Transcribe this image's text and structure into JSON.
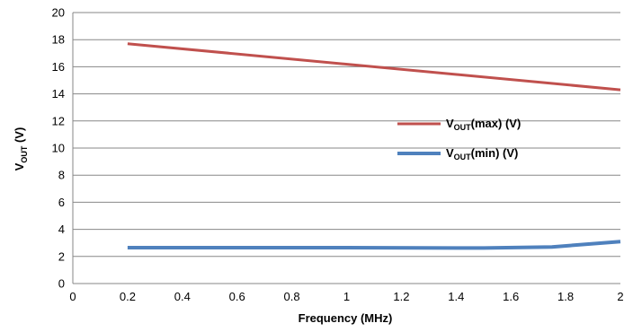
{
  "chart_data": {
    "type": "line",
    "xlabel": "Frequency (MHz)",
    "ylabel": {
      "main": "V",
      "sub": "OUT",
      "rest": " (V)"
    },
    "xlim": [
      0,
      2
    ],
    "ylim": [
      0,
      20
    ],
    "xticks": [
      "0",
      "0.2",
      "0.4",
      "0.6",
      "0.8",
      "1",
      "1.2",
      "1.4",
      "1.6",
      "1.8",
      "2"
    ],
    "yticks": [
      "0",
      "2",
      "4",
      "6",
      "8",
      "10",
      "12",
      "14",
      "16",
      "18",
      "20"
    ],
    "grid": "horizontal",
    "legend_position": "right",
    "series": [
      {
        "name": {
          "main": "V",
          "sub": "OUT",
          "rest": "(max) (V)"
        },
        "color": "#C0504D",
        "x": [
          0.2,
          2.0
        ],
        "y": [
          17.7,
          14.3
        ]
      },
      {
        "name": {
          "main": "V",
          "sub": "OUT",
          "rest": "(min) (V)"
        },
        "color": "#4F81BD",
        "x": [
          0.2,
          1.0,
          1.5,
          1.75,
          2.0
        ],
        "y": [
          2.65,
          2.65,
          2.62,
          2.7,
          3.1
        ]
      }
    ]
  }
}
